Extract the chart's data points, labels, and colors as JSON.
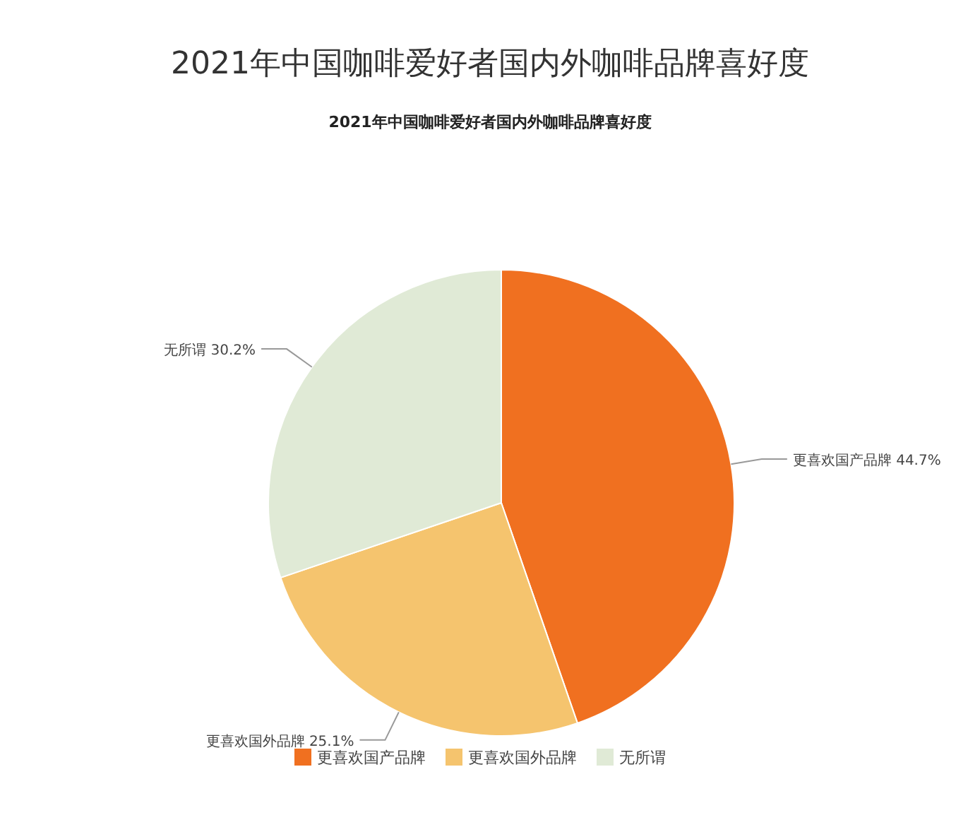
{
  "chart_data": {
    "type": "pie",
    "title": "2021年中国咖啡爱好者国内外咖啡品牌喜好度",
    "subtitle": "2021年中国咖啡爱好者国内外咖啡品牌喜好度",
    "categories": [
      "更喜欢国产品牌",
      "更喜欢国外品牌",
      "无所谓"
    ],
    "values": [
      44.7,
      25.1,
      30.2
    ],
    "value_labels": [
      "44.7%",
      "25.1%",
      "30.2%"
    ],
    "colors": [
      "#f07020",
      "#f5c46e",
      "#e0ead6"
    ],
    "legend": "bottom"
  }
}
